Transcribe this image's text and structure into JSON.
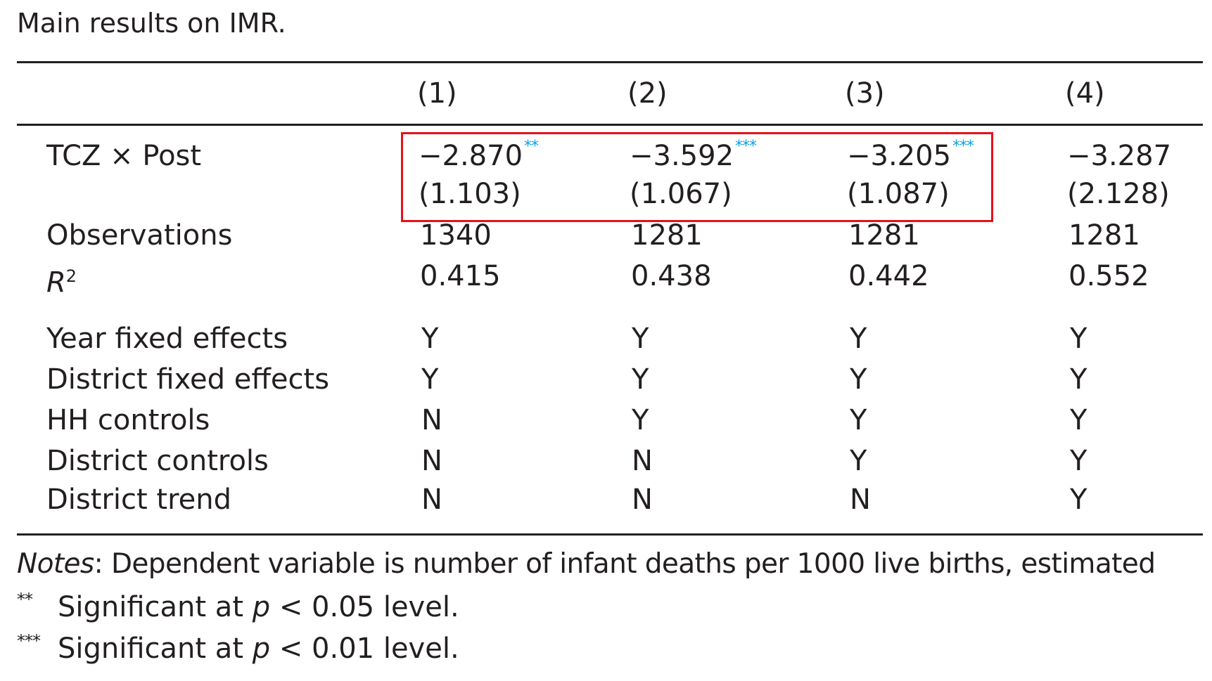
{
  "caption": "Main results on IMR.",
  "columns": [
    "(1)",
    "(2)",
    "(3)",
    "(4)"
  ],
  "coef_row": {
    "label_pre": "TCZ",
    "label_times": "×",
    "label_post": "Post",
    "estimates": [
      "−2.870",
      "−3.592",
      "−3.205",
      "−3.287"
    ],
    "stars": [
      "**",
      "***",
      "***",
      ""
    ],
    "std_errors": [
      "(1.103)",
      "(1.067)",
      "(1.087)",
      "(2.128)"
    ]
  },
  "observations": {
    "label": "Observations",
    "values": [
      "1340",
      "1281",
      "1281",
      "1281"
    ]
  },
  "r2": {
    "label_base": "R",
    "label_sup": "2",
    "values": [
      "0.415",
      "0.438",
      "0.442",
      "0.552"
    ]
  },
  "controls": [
    {
      "label": "Year fixed effects",
      "values": [
        "Y",
        "Y",
        "Y",
        "Y"
      ]
    },
    {
      "label": "District fixed effects",
      "values": [
        "Y",
        "Y",
        "Y",
        "Y"
      ]
    },
    {
      "label": "HH controls",
      "values": [
        "N",
        "Y",
        "Y",
        "Y"
      ]
    },
    {
      "label": "District controls",
      "values": [
        "N",
        "N",
        "Y",
        "Y"
      ]
    },
    {
      "label": "District trend",
      "values": [
        "N",
        "N",
        "N",
        "Y"
      ]
    }
  ],
  "notes": {
    "notes_label": "Notes",
    "notes_text": ": Dependent variable is number of infant deaths per 1000 live births, estimated",
    "sig1_marker": "**",
    "sig1_text_pre": "Significant at ",
    "sig1_p": "p",
    "sig1_text_post": " < 0.05 level.",
    "sig2_marker": "***",
    "sig2_text_pre": "Significant at ",
    "sig2_p": "p",
    "sig2_text_post": " < 0.01 level."
  },
  "colors": {
    "text": "#231f20",
    "star_accent": "#0aa0e6",
    "highlight_border": "#e8101a"
  }
}
